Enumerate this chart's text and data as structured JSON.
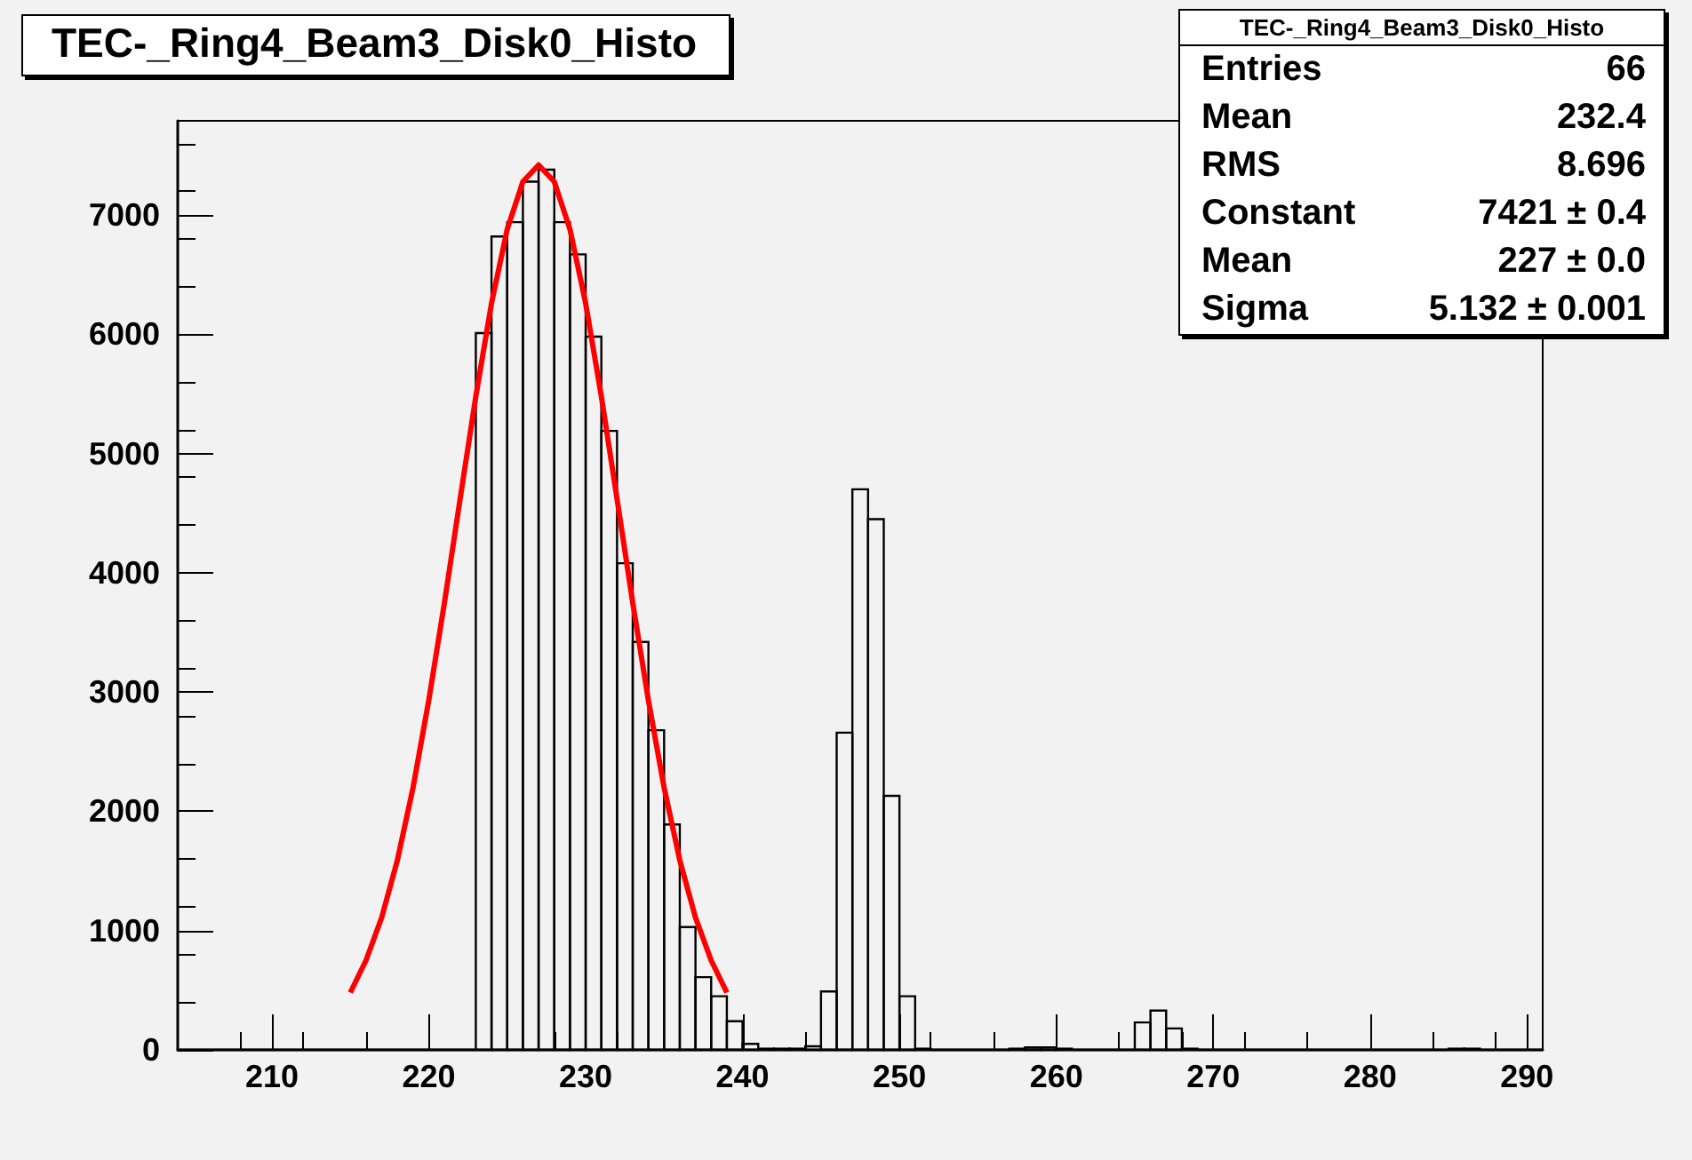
{
  "chart_data": {
    "type": "histogram",
    "title": "TEC-_Ring4_Beam3_Disk0_Histo",
    "series": [
      {
        "color": "#000000",
        "bins": [
          204,
          205,
          206,
          207,
          208,
          209,
          210,
          211,
          212,
          213,
          214,
          215,
          216,
          217,
          218,
          219,
          220,
          221,
          222,
          223,
          224,
          225,
          226,
          227,
          228,
          229,
          230,
          231,
          232,
          233,
          234,
          235,
          236,
          237,
          238,
          239,
          240,
          241,
          242,
          243,
          244,
          245,
          246,
          247,
          248,
          249,
          250,
          251,
          252,
          253,
          254,
          255,
          256,
          257,
          258,
          259,
          260,
          261,
          262,
          263,
          264,
          265,
          266,
          267,
          268,
          269,
          270,
          271,
          272,
          273,
          274,
          275,
          276,
          277,
          278,
          279,
          280,
          281,
          282,
          283,
          284,
          285,
          286,
          287,
          288,
          289,
          290,
          291
        ],
        "values": [
          0,
          0,
          0,
          0,
          0,
          0,
          0,
          0,
          0,
          0,
          0,
          0,
          0,
          0,
          0,
          0,
          0,
          0,
          0,
          6010,
          6820,
          6940,
          7280,
          7380,
          6940,
          6670,
          5980,
          5190,
          4080,
          3420,
          2680,
          1890,
          1030,
          610,
          450,
          240,
          50,
          10,
          10,
          10,
          30,
          490,
          2660,
          4700,
          4450,
          2130,
          450,
          10,
          0,
          0,
          0,
          0,
          0,
          10,
          20,
          20,
          10,
          0,
          0,
          0,
          0,
          230,
          330,
          180,
          10,
          0,
          0,
          0,
          0,
          0,
          0,
          0,
          0,
          0,
          0,
          0,
          0,
          0,
          0,
          0,
          0,
          10,
          10,
          0,
          0,
          0,
          0
        ]
      },
      {
        "type": "line",
        "color": "#ff0000",
        "marker": "none",
        "x": [
          215,
          216,
          217,
          218,
          219,
          220,
          221,
          222,
          223,
          224,
          225,
          226,
          227,
          228,
          229,
          230,
          231,
          232,
          233,
          234,
          235,
          236,
          237,
          238,
          239
        ],
        "values": [
          480,
          750,
          1110,
          1590,
          2200,
          2930,
          3750,
          4620,
          5480,
          6260,
          6880,
          7280,
          7420,
          7280,
          6880,
          6260,
          5480,
          4620,
          3750,
          2930,
          2200,
          1590,
          1110,
          750,
          480
        ]
      }
    ],
    "xlim": [
      204,
      291
    ],
    "xticks": [
      210,
      220,
      230,
      240,
      250,
      260,
      270,
      280,
      290
    ],
    "ylim": [
      0,
      7790
    ],
    "yticks": [
      0,
      1000,
      2000,
      3000,
      4000,
      5000,
      6000,
      7000
    ],
    "grid": false,
    "annotations": [
      "TEC-_Ring4_Beam3_Disk0_Histo",
      "Entries 66",
      "Mean 232.4",
      "RMS 8.696",
      "Constant 7421 ± 0.4",
      "Mean 227 ± 0.0",
      "Sigma 5.132 ± 0.001"
    ]
  }
}
